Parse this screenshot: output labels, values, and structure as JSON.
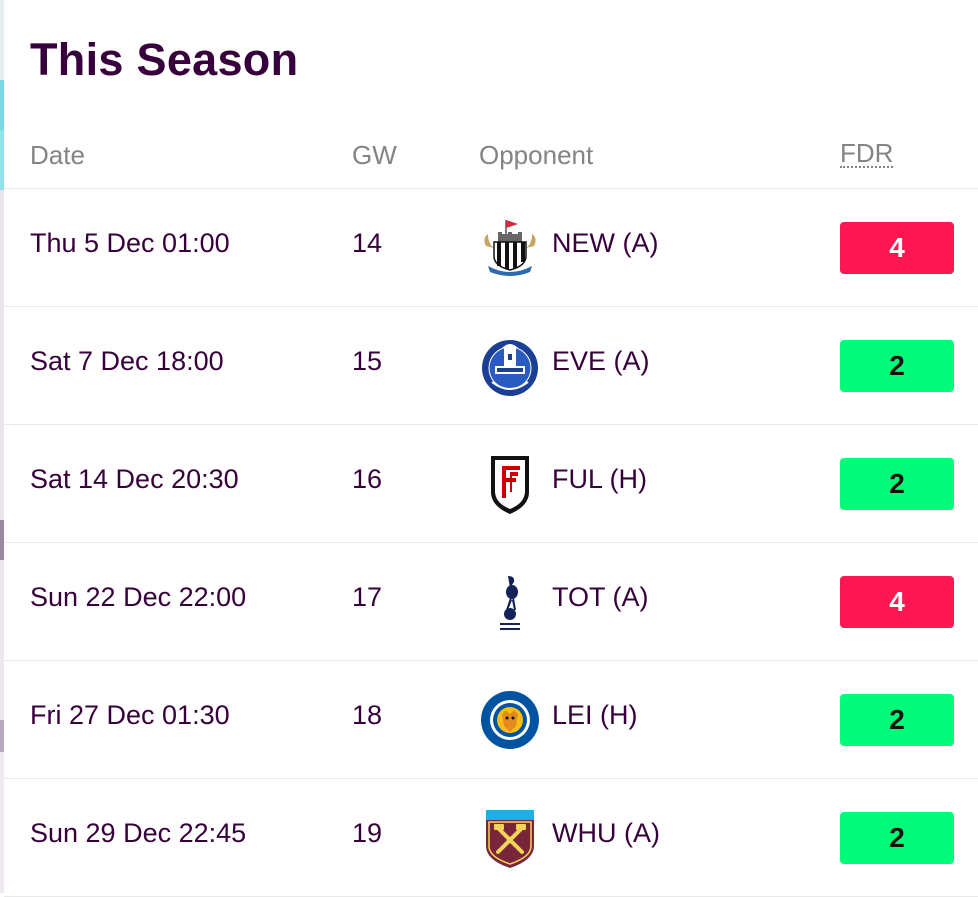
{
  "section": {
    "title": "This Season"
  },
  "columns": {
    "date": "Date",
    "gw": "GW",
    "opponent": "Opponent",
    "fdr": "FDR"
  },
  "colors": {
    "brand": "#37003c",
    "fdr_4": "#ff1751",
    "fdr_2": "#01fc7a"
  },
  "fixtures": [
    {
      "date": "Thu 5 Dec 01:00",
      "gw": "14",
      "opponent": "NEW (A)",
      "fdr": "4",
      "crest": "newcastle-crest-icon"
    },
    {
      "date": "Sat 7 Dec 18:00",
      "gw": "15",
      "opponent": "EVE (A)",
      "fdr": "2",
      "crest": "everton-crest-icon"
    },
    {
      "date": "Sat 14 Dec 20:30",
      "gw": "16",
      "opponent": "FUL (H)",
      "fdr": "2",
      "crest": "fulham-crest-icon"
    },
    {
      "date": "Sun 22 Dec 22:00",
      "gw": "17",
      "opponent": "TOT (A)",
      "fdr": "4",
      "crest": "tottenham-crest-icon"
    },
    {
      "date": "Fri 27 Dec 01:30",
      "gw": "18",
      "opponent": "LEI (H)",
      "fdr": "2",
      "crest": "leicester-crest-icon"
    },
    {
      "date": "Sun 29 Dec 22:45",
      "gw": "19",
      "opponent": "WHU (A)",
      "fdr": "2",
      "crest": "west-ham-crest-icon"
    }
  ]
}
